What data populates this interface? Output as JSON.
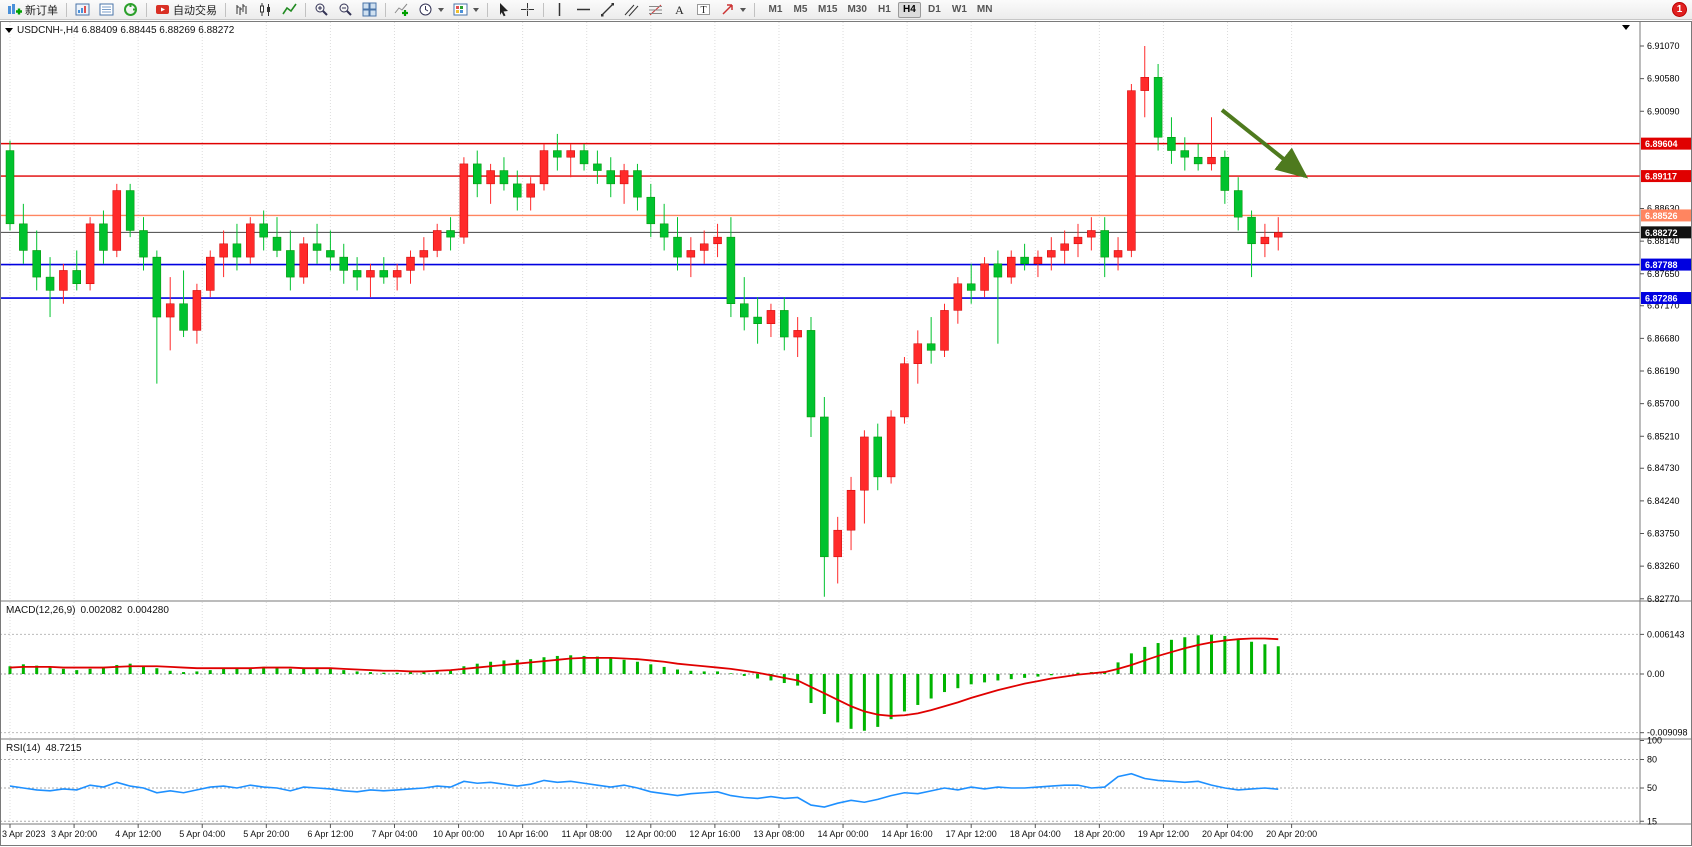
{
  "window": {
    "badge_count": "1"
  },
  "toolbar": {
    "new_order_label": "新订单",
    "autotrading_label": "自动交易",
    "timeframes": [
      "M1",
      "M5",
      "M15",
      "M30",
      "H1",
      "H4",
      "D1",
      "W1",
      "MN"
    ],
    "active_timeframe": "H4"
  },
  "chart": {
    "title": "USDCNH-,H4  6.88409 6.88445 6.88269 6.88272"
  },
  "chart_data": {
    "type": "candlestick",
    "symbol": "USDCNH-",
    "period": "H4",
    "up_color": "#ff2a2a",
    "down_color": "#00c22e",
    "price_axis_ticks": [
      "6.91070",
      "6.90580",
      "6.90090",
      "6.88630",
      "6.88140",
      "6.87650",
      "6.87170",
      "6.86680",
      "6.86190",
      "6.85700",
      "6.85210",
      "6.84730",
      "6.84240",
      "6.83750",
      "6.83260",
      "6.82770"
    ],
    "price_tags": [
      {
        "label": "6.89604",
        "price": 6.89604,
        "color": "#e00000",
        "line_color": "#e00000",
        "line_width": 1.4
      },
      {
        "label": "6.89117",
        "price": 6.89117,
        "color": "#e00000",
        "line_color": "#e00000",
        "line_width": 1.4
      },
      {
        "label": "6.88526",
        "price": 6.88526,
        "color": "#ff8560",
        "line_color": "#ff8560",
        "line_width": 1.4
      },
      {
        "label": "6.88272",
        "price": 6.88272,
        "color": "#111111",
        "line_color": "#444444",
        "line_width": 1
      },
      {
        "label": "6.87788",
        "price": 6.87788,
        "color": "#0000e0",
        "line_color": "#0000e0",
        "line_width": 1.6
      },
      {
        "label": "6.87286",
        "price": 6.87286,
        "color": "#0000e0",
        "line_color": "#0000e0",
        "line_width": 1.6
      }
    ],
    "time_labels": [
      "3 Apr 2023",
      "3 Apr 20:00",
      "4 Apr 12:00",
      "5 Apr 04:00",
      "5 Apr 20:00",
      "6 Apr 12:00",
      "7 Apr 04:00",
      "10 Apr 00:00",
      "10 Apr 16:00",
      "11 Apr 08:00",
      "12 Apr 00:00",
      "12 Apr 16:00",
      "13 Apr 08:00",
      "14 Apr 00:00",
      "14 Apr 16:00",
      "17 Apr 12:00",
      "18 Apr 04:00",
      "18 Apr 20:00",
      "19 Apr 12:00",
      "20 Apr 04:00",
      "20 Apr 20:00"
    ],
    "candles": [
      [
        6.895,
        6.8965,
        6.883,
        6.884
      ],
      [
        6.884,
        6.887,
        6.878,
        6.88
      ],
      [
        6.88,
        6.883,
        6.874,
        6.876
      ],
      [
        6.876,
        6.879,
        6.87,
        6.874
      ],
      [
        6.874,
        6.878,
        6.872,
        6.877
      ],
      [
        6.877,
        6.88,
        6.874,
        6.875
      ],
      [
        6.875,
        6.885,
        6.874,
        6.884
      ],
      [
        6.884,
        6.886,
        6.878,
        6.88
      ],
      [
        6.88,
        6.89,
        6.879,
        6.889
      ],
      [
        6.889,
        6.89,
        6.882,
        6.883
      ],
      [
        6.883,
        6.885,
        6.877,
        6.879
      ],
      [
        6.879,
        6.88,
        6.86,
        6.87
      ],
      [
        6.87,
        6.876,
        6.865,
        6.872
      ],
      [
        6.872,
        6.877,
        6.867,
        6.868
      ],
      [
        6.868,
        6.875,
        6.866,
        6.874
      ],
      [
        6.874,
        6.88,
        6.873,
        6.879
      ],
      [
        6.879,
        6.883,
        6.876,
        6.881
      ],
      [
        6.881,
        6.884,
        6.877,
        6.879
      ],
      [
        6.879,
        6.885,
        6.878,
        6.884
      ],
      [
        6.884,
        6.886,
        6.88,
        6.882
      ],
      [
        6.882,
        6.885,
        6.879,
        6.88
      ],
      [
        6.88,
        6.883,
        6.874,
        6.876
      ],
      [
        6.876,
        6.882,
        6.875,
        6.881
      ],
      [
        6.881,
        6.884,
        6.878,
        6.88
      ],
      [
        6.88,
        6.883,
        6.877,
        6.879
      ],
      [
        6.879,
        6.881,
        6.875,
        6.877
      ],
      [
        6.877,
        6.879,
        6.874,
        6.876
      ],
      [
        6.876,
        6.878,
        6.873,
        6.877
      ],
      [
        6.877,
        6.879,
        6.875,
        6.876
      ],
      [
        6.876,
        6.878,
        6.874,
        6.877
      ],
      [
        6.877,
        6.88,
        6.875,
        6.879
      ],
      [
        6.879,
        6.882,
        6.877,
        6.88
      ],
      [
        6.88,
        6.884,
        6.879,
        6.883
      ],
      [
        6.883,
        6.885,
        6.88,
        6.882
      ],
      [
        6.882,
        6.894,
        6.881,
        6.893
      ],
      [
        6.893,
        6.895,
        6.888,
        6.89
      ],
      [
        6.89,
        6.893,
        6.887,
        6.892
      ],
      [
        6.892,
        6.894,
        6.889,
        6.89
      ],
      [
        6.89,
        6.892,
        6.886,
        6.888
      ],
      [
        6.888,
        6.891,
        6.886,
        6.89
      ],
      [
        6.89,
        6.896,
        6.889,
        6.895
      ],
      [
        6.895,
        6.8975,
        6.892,
        6.894
      ],
      [
        6.894,
        6.896,
        6.891,
        6.895
      ],
      [
        6.895,
        6.896,
        6.892,
        6.893
      ],
      [
        6.893,
        6.895,
        6.89,
        6.892
      ],
      [
        6.892,
        6.894,
        6.888,
        6.89
      ],
      [
        6.89,
        6.893,
        6.887,
        6.892
      ],
      [
        6.892,
        6.893,
        6.886,
        6.888
      ],
      [
        6.888,
        6.89,
        6.882,
        6.884
      ],
      [
        6.884,
        6.887,
        6.88,
        6.882
      ],
      [
        6.882,
        6.885,
        6.877,
        6.879
      ],
      [
        6.879,
        6.882,
        6.876,
        6.88
      ],
      [
        6.88,
        6.883,
        6.878,
        6.881
      ],
      [
        6.881,
        6.884,
        6.879,
        6.882
      ],
      [
        6.882,
        6.885,
        6.87,
        6.872
      ],
      [
        6.872,
        6.876,
        6.868,
        6.87
      ],
      [
        6.87,
        6.873,
        6.866,
        6.869
      ],
      [
        6.869,
        6.872,
        6.867,
        6.871
      ],
      [
        6.871,
        6.873,
        6.865,
        6.867
      ],
      [
        6.867,
        6.87,
        6.864,
        6.868
      ],
      [
        6.868,
        6.87,
        6.852,
        6.855
      ],
      [
        6.855,
        6.858,
        6.828,
        6.834
      ],
      [
        6.834,
        6.84,
        6.83,
        6.838
      ],
      [
        6.838,
        6.846,
        6.835,
        6.844
      ],
      [
        6.844,
        6.853,
        6.839,
        6.852
      ],
      [
        6.852,
        6.854,
        6.844,
        6.846
      ],
      [
        6.846,
        6.856,
        6.845,
        6.855
      ],
      [
        6.855,
        6.864,
        6.854,
        6.863
      ],
      [
        6.863,
        6.868,
        6.86,
        6.866
      ],
      [
        6.866,
        6.87,
        6.863,
        6.865
      ],
      [
        6.865,
        6.872,
        6.864,
        6.871
      ],
      [
        6.871,
        6.876,
        6.869,
        6.875
      ],
      [
        6.875,
        6.878,
        6.872,
        6.874
      ],
      [
        6.874,
        6.879,
        6.873,
        6.878
      ],
      [
        6.878,
        6.88,
        6.866,
        6.876
      ],
      [
        6.876,
        6.88,
        6.875,
        6.879
      ],
      [
        6.879,
        6.881,
        6.877,
        6.878
      ],
      [
        6.878,
        6.88,
        6.876,
        6.879
      ],
      [
        6.879,
        6.882,
        6.877,
        6.88
      ],
      [
        6.88,
        6.883,
        6.878,
        6.881
      ],
      [
        6.881,
        6.884,
        6.879,
        6.882
      ],
      [
        6.882,
        6.885,
        6.88,
        6.883
      ],
      [
        6.883,
        6.885,
        6.876,
        6.879
      ],
      [
        6.879,
        6.882,
        6.877,
        6.88
      ],
      [
        6.88,
        6.905,
        6.879,
        6.904
      ],
      [
        6.904,
        6.9107,
        6.9,
        6.906
      ],
      [
        6.906,
        6.908,
        6.895,
        6.897
      ],
      [
        6.897,
        6.9,
        6.893,
        6.895
      ],
      [
        6.895,
        6.897,
        6.892,
        6.894
      ],
      [
        6.894,
        6.896,
        6.892,
        6.893
      ],
      [
        6.893,
        6.9,
        6.892,
        6.894
      ],
      [
        6.894,
        6.895,
        6.887,
        6.889
      ],
      [
        6.889,
        6.891,
        6.883,
        6.885
      ],
      [
        6.885,
        6.886,
        6.876,
        6.881
      ],
      [
        6.881,
        6.884,
        6.879,
        6.882
      ],
      [
        6.882,
        6.885,
        6.88,
        6.8827
      ]
    ],
    "macd": {
      "label": "MACD(12,26,9)",
      "value1": "0.002082",
      "value2": "0.004280",
      "axis_labels": [
        "0.006143",
        "0.00",
        "-0.009098"
      ],
      "axis_values": [
        0.006143,
        0,
        -0.009098
      ],
      "histogram_color": "#00b400",
      "signal_color": "#e00000",
      "histogram": [
        0.0012,
        0.0015,
        0.0013,
        0.001,
        0.0008,
        0.0006,
        0.0008,
        0.001,
        0.0014,
        0.0016,
        0.0013,
        0.0009,
        0.0005,
        0.0003,
        0.0004,
        0.0006,
        0.0008,
        0.0009,
        0.001,
        0.0011,
        0.001,
        0.0008,
        0.0008,
        0.0009,
        0.0008,
        0.0006,
        0.0004,
        0.0003,
        0.0002,
        0.0002,
        0.0003,
        0.0004,
        0.0006,
        0.0007,
        0.0012,
        0.0016,
        0.0019,
        0.0021,
        0.0022,
        0.0023,
        0.0026,
        0.0028,
        0.0029,
        0.0028,
        0.0027,
        0.0024,
        0.0022,
        0.0019,
        0.0015,
        0.0011,
        0.0007,
        0.0005,
        0.0004,
        0.0004,
        0.0001,
        -0.0003,
        -0.0007,
        -0.001,
        -0.0014,
        -0.0018,
        -0.0045,
        -0.0062,
        -0.0075,
        -0.0085,
        -0.0088,
        -0.0082,
        -0.007,
        -0.0058,
        -0.0048,
        -0.0038,
        -0.0028,
        -0.0022,
        -0.0016,
        -0.0013,
        -0.001,
        -0.0008,
        -0.0006,
        -0.0004,
        -0.0002,
        0.0,
        0.0002,
        0.0003,
        0.0004,
        0.0018,
        0.0032,
        0.0042,
        0.0048,
        0.0053,
        0.0057,
        0.006,
        0.0061,
        0.0059,
        0.0055,
        0.005,
        0.0046,
        0.0043
      ],
      "signal": [
        0.001,
        0.0011,
        0.0011,
        0.0011,
        0.001,
        0.001,
        0.001,
        0.001,
        0.0011,
        0.0012,
        0.0012,
        0.0012,
        0.0011,
        0.001,
        0.0009,
        0.0009,
        0.0009,
        0.0009,
        0.0009,
        0.001,
        0.001,
        0.001,
        0.0009,
        0.0009,
        0.0009,
        0.0008,
        0.0007,
        0.0006,
        0.0005,
        0.0005,
        0.0004,
        0.0004,
        0.0005,
        0.0006,
        0.0008,
        0.001,
        0.0012,
        0.0014,
        0.0016,
        0.0018,
        0.002,
        0.0022,
        0.0024,
        0.0025,
        0.0025,
        0.0025,
        0.0024,
        0.0023,
        0.0021,
        0.0019,
        0.0016,
        0.0014,
        0.0012,
        0.001,
        0.0008,
        0.0005,
        0.0002,
        -0.0002,
        -0.0006,
        -0.001,
        -0.002,
        -0.003,
        -0.004,
        -0.005,
        -0.0058,
        -0.0063,
        -0.0065,
        -0.0064,
        -0.0061,
        -0.0056,
        -0.005,
        -0.0044,
        -0.0037,
        -0.0031,
        -0.0025,
        -0.002,
        -0.0015,
        -0.0011,
        -0.0007,
        -0.0004,
        -0.0001,
        0.0001,
        0.0003,
        0.0008,
        0.0014,
        0.0021,
        0.0028,
        0.0034,
        0.004,
        0.0045,
        0.0049,
        0.0052,
        0.0054,
        0.0055,
        0.0055,
        0.0054
      ]
    },
    "rsi": {
      "label": "RSI(14)",
      "value_text": "48.7215",
      "line_color": "#1e90ff",
      "levels": [
        "100",
        "80",
        "50",
        "15"
      ],
      "level_values": [
        100,
        80,
        50,
        15
      ],
      "values": [
        52,
        50,
        48,
        47,
        49,
        48,
        53,
        51,
        56,
        52,
        50,
        45,
        47,
        45,
        48,
        51,
        52,
        50,
        53,
        51,
        50,
        47,
        51,
        50,
        49,
        47,
        46,
        48,
        47,
        48,
        49,
        50,
        52,
        51,
        57,
        55,
        56,
        54,
        52,
        54,
        58,
        56,
        57,
        55,
        53,
        51,
        53,
        50,
        46,
        44,
        42,
        44,
        45,
        46,
        42,
        40,
        39,
        41,
        39,
        40,
        32,
        30,
        34,
        37,
        35,
        38,
        42,
        45,
        44,
        47,
        50,
        48,
        51,
        49,
        51,
        50,
        50,
        51,
        52,
        53,
        53,
        50,
        51,
        62,
        65,
        60,
        58,
        57,
        56,
        57,
        53,
        50,
        48,
        49,
        50,
        48.7
      ],
      "dip_note": ""
    },
    "annotation_arrow": {
      "color": "#4e7a1e"
    }
  }
}
